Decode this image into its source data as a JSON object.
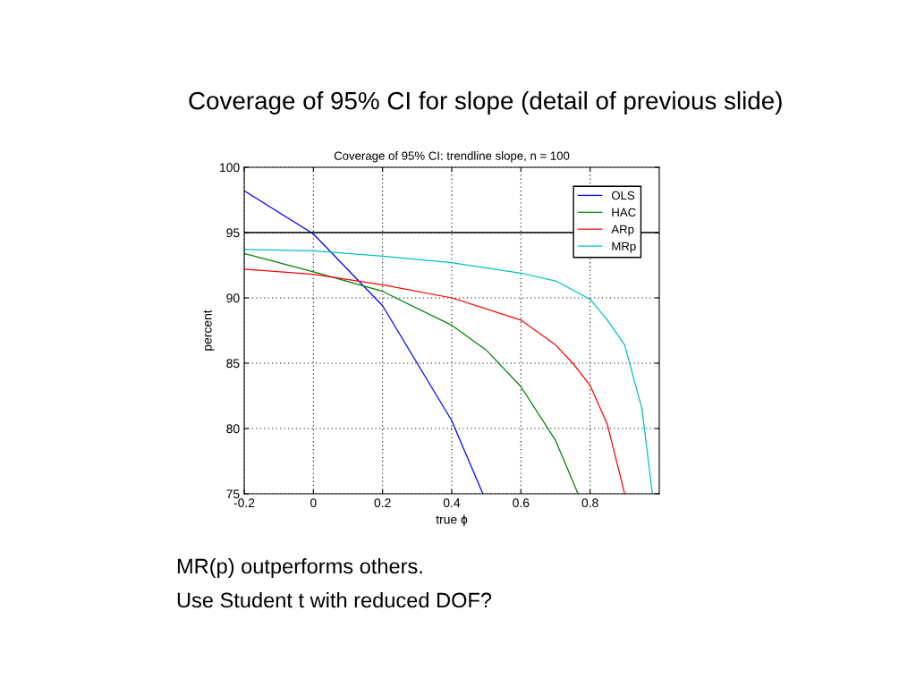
{
  "chart_data": {
    "type": "line",
    "title": "Coverage of 95% CI for slope (detail of previous slide)",
    "subtitle": "Coverage of 95% CI: trendline slope, n = 100",
    "xlabel": "true ϕ",
    "ylabel": "percent",
    "series": [
      {
        "name": "OLS",
        "color": "#0000ff",
        "x": [
          -0.2,
          0,
          0.2,
          0.4,
          0.49
        ],
        "values": [
          98.2,
          94.9,
          89.4,
          80.6,
          75
        ]
      },
      {
        "name": "HAC",
        "color": "#008000",
        "x": [
          -0.2,
          0,
          0.2,
          0.4,
          0.5,
          0.6,
          0.7,
          0.765
        ],
        "values": [
          93.4,
          92.0,
          90.5,
          87.9,
          86.0,
          83.2,
          79.1,
          75
        ]
      },
      {
        "name": "ARp",
        "color": "#ff0000",
        "x": [
          -0.2,
          0,
          0.2,
          0.4,
          0.6,
          0.7,
          0.75,
          0.8,
          0.85,
          0.9
        ],
        "values": [
          92.2,
          91.8,
          91.0,
          90.0,
          88.3,
          86.4,
          85.0,
          83.3,
          80.3,
          75
        ]
      },
      {
        "name": "MRp",
        "color": "#00bfbf",
        "x": [
          -0.2,
          0,
          0.2,
          0.4,
          0.6,
          0.7,
          0.75,
          0.8,
          0.85,
          0.9,
          0.95,
          0.98
        ],
        "values": [
          93.7,
          93.6,
          93.2,
          92.7,
          91.9,
          91.3,
          90.6,
          89.9,
          88.3,
          86.4,
          81.5,
          75
        ]
      }
    ],
    "xlim": [
      -0.2,
      1.0
    ],
    "ylim": [
      75,
      100
    ],
    "xticks": [
      {
        "value": -0.2,
        "label": "-0.2"
      },
      0,
      0.2,
      0.4,
      0.6,
      0.8
    ],
    "yticks": [
      75,
      80,
      85,
      90,
      95,
      100
    ],
    "ref_lines": [
      {
        "axis": "y",
        "value": 95,
        "color": "#000000",
        "line_style": "solid"
      }
    ],
    "grid": true,
    "legend": "top right",
    "marker": "none",
    "line_style": "solid",
    "annotations": [
      "MR(p) outperforms others.",
      "Use Student t with reduced DOF?"
    ]
  }
}
